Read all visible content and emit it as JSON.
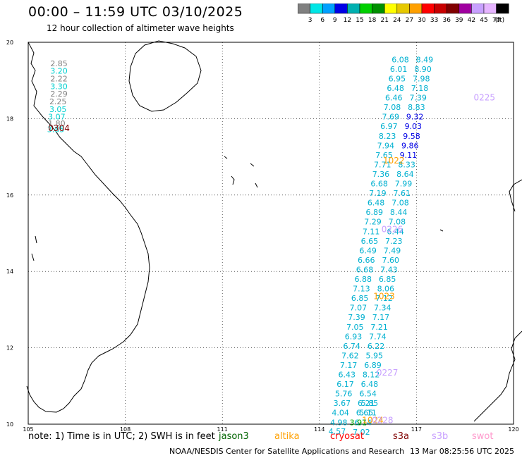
{
  "title": "00:00 – 11:59 UTC 03/10/2025",
  "subtitle": "12 hour collection of altimeter wave heights",
  "scale": {
    "unit": "(ft)",
    "colors": [
      "#808080",
      "#00e6e6",
      "#00a0ff",
      "#0000e6",
      "#00b0b0",
      "#00d000",
      "#009000",
      "#ffff00",
      "#e6c800",
      "#ffa000",
      "#ff0000",
      "#c80000",
      "#800000",
      "#a000a0",
      "#c8a0ff",
      "#e6b4ff",
      "#000000"
    ],
    "labels": [
      "3",
      "6",
      "9",
      "12",
      "15",
      "18",
      "21",
      "24",
      "27",
      "30",
      "33",
      "36",
      "39",
      "42",
      "45",
      "70"
    ]
  },
  "map": {
    "lon_range": [
      105,
      120
    ],
    "lat_range": [
      10,
      20
    ],
    "lon_ticks": [
      "105",
      "108",
      "111",
      "114",
      "117",
      "120"
    ],
    "lat_ticks": [
      "20",
      "18",
      "16",
      "14",
      "12",
      "10"
    ],
    "grid": true,
    "icons": {
      "coastline": "coastline-icon"
    }
  },
  "track_labels": [
    {
      "text": "0304",
      "color": "#800000",
      "lon": 105.95,
      "lat": 17.75
    },
    {
      "text": "0225",
      "color": "#c8a0ff",
      "lon": 119.1,
      "lat": 18.55
    },
    {
      "text": "1022",
      "color": "#ffa000",
      "lon": 116.3,
      "lat": 16.9
    },
    {
      "text": "0226",
      "color": "#c8a0ff",
      "lon": 116.25,
      "lat": 15.1
    },
    {
      "text": "1023",
      "color": "#ffa000",
      "lon": 116.0,
      "lat": 13.35
    },
    {
      "text": "0227",
      "color": "#c8a0ff",
      "lon": 116.1,
      "lat": 11.35
    },
    {
      "text": "1024",
      "color": "#ffa000",
      "lon": 115.65,
      "lat": 10.1
    },
    {
      "text": "0228",
      "color": "#c8a0ff",
      "lon": 115.95,
      "lat": 10.1
    }
  ],
  "tracks": [
    {
      "name": "",
      "points": [
        {
          "lon": 105.95,
          "lat": 19.45,
          "v": "2.85",
          "c": "#808080"
        },
        {
          "lon": 105.95,
          "lat": 19.25,
          "v": "3.20",
          "c": "#00d0d0"
        },
        {
          "lon": 105.95,
          "lat": 19.05,
          "v": "2.22",
          "c": "#808080"
        },
        {
          "lon": 105.95,
          "lat": 18.85,
          "v": "3.30",
          "c": "#00d0d0"
        },
        {
          "lon": 105.95,
          "lat": 18.65,
          "v": "2.29",
          "c": "#808080"
        },
        {
          "lon": 105.92,
          "lat": 18.45,
          "v": "2.25",
          "c": "#808080"
        },
        {
          "lon": 105.92,
          "lat": 18.25,
          "v": "3.05",
          "c": "#00d0d0"
        },
        {
          "lon": 105.88,
          "lat": 18.05,
          "v": "3.07",
          "c": "#00d0d0"
        },
        {
          "lon": 105.88,
          "lat": 17.88,
          "v": "1.80",
          "c": "#808080"
        },
        {
          "lon": 105.85,
          "lat": 17.72,
          "v": "3.85",
          "c": "#00d0d0"
        }
      ]
    },
    {
      "name": "",
      "points": [
        {
          "lon": 116.5,
          "lat": 19.55,
          "v": "6.08"
        },
        {
          "lon": 116.45,
          "lat": 19.3,
          "v": "6.01"
        },
        {
          "lon": 116.4,
          "lat": 19.05,
          "v": "6.95"
        },
        {
          "lon": 116.35,
          "lat": 18.8,
          "v": "6.48"
        },
        {
          "lon": 116.3,
          "lat": 18.55,
          "v": "6.46"
        },
        {
          "lon": 116.25,
          "lat": 18.3,
          "v": "7.08"
        },
        {
          "lon": 116.2,
          "lat": 18.05,
          "v": "7.69"
        },
        {
          "lon": 116.15,
          "lat": 17.8,
          "v": "6.97"
        },
        {
          "lon": 116.1,
          "lat": 17.55,
          "v": "8.23"
        },
        {
          "lon": 116.05,
          "lat": 17.3,
          "v": "7.94"
        },
        {
          "lon": 116.0,
          "lat": 17.05,
          "v": "7.65"
        },
        {
          "lon": 115.95,
          "lat": 16.8,
          "v": "7.71"
        },
        {
          "lon": 115.9,
          "lat": 16.55,
          "v": "7.36"
        },
        {
          "lon": 115.85,
          "lat": 16.3,
          "v": "6.68"
        },
        {
          "lon": 115.8,
          "lat": 16.05,
          "v": "7.19"
        },
        {
          "lon": 115.75,
          "lat": 15.8,
          "v": "6.48"
        },
        {
          "lon": 115.7,
          "lat": 15.55,
          "v": "6.89"
        },
        {
          "lon": 115.65,
          "lat": 15.3,
          "v": "7.29"
        },
        {
          "lon": 115.6,
          "lat": 15.05,
          "v": "7.11"
        },
        {
          "lon": 115.55,
          "lat": 14.8,
          "v": "6.65"
        },
        {
          "lon": 115.5,
          "lat": 14.55,
          "v": "6.49"
        },
        {
          "lon": 115.45,
          "lat": 14.3,
          "v": "6.66"
        },
        {
          "lon": 115.4,
          "lat": 14.05,
          "v": "6.68"
        },
        {
          "lon": 115.35,
          "lat": 13.8,
          "v": "6.88"
        },
        {
          "lon": 115.3,
          "lat": 13.55,
          "v": "7.13"
        },
        {
          "lon": 115.25,
          "lat": 13.3,
          "v": "6.85"
        },
        {
          "lon": 115.2,
          "lat": 13.05,
          "v": "7.07"
        },
        {
          "lon": 115.15,
          "lat": 12.8,
          "v": "7.39"
        },
        {
          "lon": 115.1,
          "lat": 12.55,
          "v": "7.05"
        },
        {
          "lon": 115.05,
          "lat": 12.3,
          "v": "6.93"
        },
        {
          "lon": 115.0,
          "lat": 12.05,
          "v": "6.74"
        },
        {
          "lon": 114.95,
          "lat": 11.8,
          "v": "7.62"
        },
        {
          "lon": 114.9,
          "lat": 11.55,
          "v": "7.17"
        },
        {
          "lon": 114.85,
          "lat": 11.3,
          "v": "6.43"
        },
        {
          "lon": 114.8,
          "lat": 11.05,
          "v": "6.17"
        },
        {
          "lon": 114.75,
          "lat": 10.8,
          "v": "5.76"
        },
        {
          "lon": 114.7,
          "lat": 10.55,
          "v": "3.67"
        },
        {
          "lon": 114.65,
          "lat": 10.3,
          "v": "4.04"
        },
        {
          "lon": 114.6,
          "lat": 10.05,
          "v": "4.98"
        },
        {
          "lon": 114.55,
          "lat": 9.82,
          "v": "4.57"
        }
      ]
    },
    {
      "name": "",
      "points": [
        {
          "lon": 117.25,
          "lat": 19.55,
          "v": "8.49"
        },
        {
          "lon": 117.2,
          "lat": 19.3,
          "v": "8.90"
        },
        {
          "lon": 117.15,
          "lat": 19.05,
          "v": "7.98"
        },
        {
          "lon": 117.1,
          "lat": 18.8,
          "v": "7.18"
        },
        {
          "lon": 117.05,
          "lat": 18.55,
          "v": "7.39"
        },
        {
          "lon": 117.0,
          "lat": 18.3,
          "v": "8.83"
        },
        {
          "lon": 116.95,
          "lat": 18.05,
          "v": "9.32",
          "c": "#0000e6"
        },
        {
          "lon": 116.9,
          "lat": 17.8,
          "v": "9.03",
          "c": "#0000e6"
        },
        {
          "lon": 116.85,
          "lat": 17.55,
          "v": "9.58",
          "c": "#0000e6"
        },
        {
          "lon": 116.8,
          "lat": 17.3,
          "v": "9.86",
          "c": "#0000e6"
        },
        {
          "lon": 116.75,
          "lat": 17.05,
          "v": "9.11",
          "c": "#0000e6"
        },
        {
          "lon": 116.7,
          "lat": 16.8,
          "v": "8.33"
        },
        {
          "lon": 116.65,
          "lat": 16.55,
          "v": "8.64"
        },
        {
          "lon": 116.6,
          "lat": 16.3,
          "v": "7.99"
        },
        {
          "lon": 116.55,
          "lat": 16.05,
          "v": "7.61"
        },
        {
          "lon": 116.5,
          "lat": 15.8,
          "v": "7.08"
        },
        {
          "lon": 116.45,
          "lat": 15.55,
          "v": "8.44"
        },
        {
          "lon": 116.4,
          "lat": 15.3,
          "v": "7.08"
        },
        {
          "lon": 116.35,
          "lat": 15.05,
          "v": "6.44"
        },
        {
          "lon": 116.3,
          "lat": 14.8,
          "v": "7.23"
        },
        {
          "lon": 116.25,
          "lat": 14.55,
          "v": "7.49"
        },
        {
          "lon": 116.2,
          "lat": 14.3,
          "v": "7.60"
        },
        {
          "lon": 116.15,
          "lat": 14.05,
          "v": "7.43"
        },
        {
          "lon": 116.1,
          "lat": 13.8,
          "v": "6.85"
        },
        {
          "lon": 116.05,
          "lat": 13.55,
          "v": "8.06"
        },
        {
          "lon": 116.0,
          "lat": 13.3,
          "v": "7.12"
        },
        {
          "lon": 115.95,
          "lat": 13.05,
          "v": "7.34"
        },
        {
          "lon": 115.9,
          "lat": 12.8,
          "v": "7.17"
        },
        {
          "lon": 115.85,
          "lat": 12.55,
          "v": "7.21"
        },
        {
          "lon": 115.8,
          "lat": 12.3,
          "v": "7.74"
        },
        {
          "lon": 115.75,
          "lat": 12.05,
          "v": "6.22"
        },
        {
          "lon": 115.7,
          "lat": 11.8,
          "v": "5.95"
        },
        {
          "lon": 115.65,
          "lat": 11.55,
          "v": "6.89"
        },
        {
          "lon": 115.6,
          "lat": 11.3,
          "v": "8.12"
        },
        {
          "lon": 115.55,
          "lat": 11.05,
          "v": "6.48"
        },
        {
          "lon": 115.5,
          "lat": 10.8,
          "v": "6.54"
        },
        {
          "lon": 115.45,
          "lat": 10.55,
          "v": "6.21"
        },
        {
          "lon": 115.4,
          "lat": 10.3,
          "v": "6.65"
        },
        {
          "lon": 115.35,
          "lat": 10.05,
          "v": "6.74"
        },
        {
          "lon": 115.3,
          "lat": 9.8,
          "v": "7.02"
        }
      ]
    }
  ],
  "track_extra": [
    {
      "lon": 115.55,
      "lat": 10.55,
      "v": "5.85"
    },
    {
      "lon": 115.5,
      "lat": 10.3,
      "v": "5.11"
    },
    {
      "lon": 115.2,
      "lat": 10.05,
      "v": "3.91",
      "c": "#00b000"
    }
  ],
  "footer": {
    "note": "note:  1) Time is in UTC;  2) SWH is in feet",
    "satellites": [
      {
        "name": "jason3",
        "color": "#006400",
        "left": 310
      },
      {
        "name": "altika",
        "color": "#ffa000",
        "left": 389
      },
      {
        "name": "cryosat",
        "color": "#ff0000",
        "left": 468
      },
      {
        "name": "s3a",
        "color": "#800000",
        "left": 557
      },
      {
        "name": "s3b",
        "color": "#c8a0ff",
        "left": 612
      },
      {
        "name": "swot",
        "color": "#ff99cc",
        "left": 669
      }
    ],
    "credit": "NOAA/NESDIS Center for Satellite Applications and Research",
    "stamp": "13 Mar 08:25:56 UTC 2025"
  }
}
